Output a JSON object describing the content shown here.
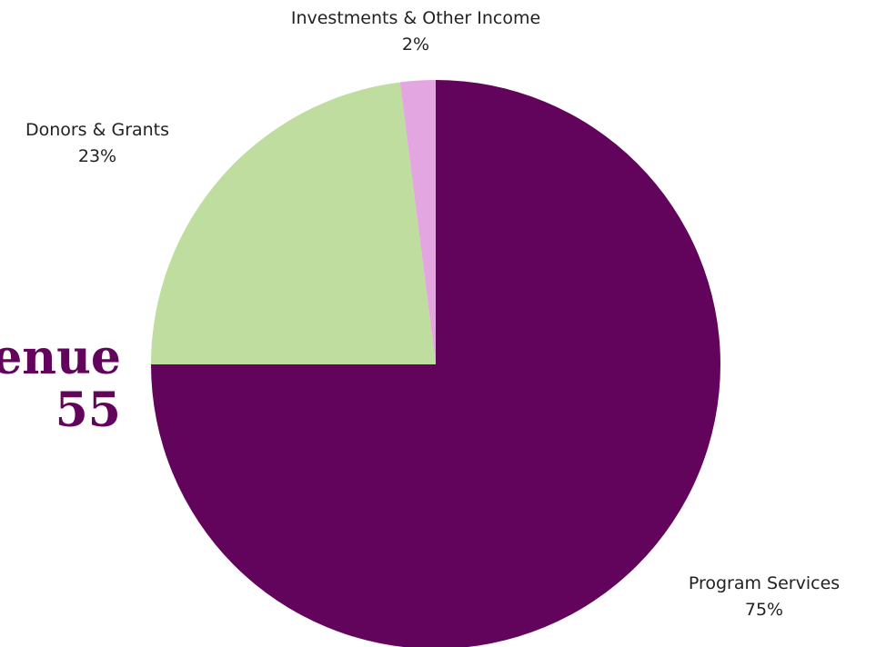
{
  "headline": {
    "line1": "enue",
    "line2": "55"
  },
  "chart_data": {
    "type": "pie",
    "title": "",
    "start_angle_deg": 0,
    "direction": "clockwise",
    "slices": [
      {
        "label": "Program Services",
        "value": 75,
        "value_label": "75%",
        "color": "#63045c"
      },
      {
        "label": "Donors & Grants",
        "value": 23,
        "value_label": "23%",
        "color": "#bfdd9f"
      },
      {
        "label": "Investments & Other Income",
        "value": 2,
        "value_label": "2%",
        "color": "#e4a6e0"
      }
    ],
    "legend": "none",
    "data_labels": "outside"
  }
}
